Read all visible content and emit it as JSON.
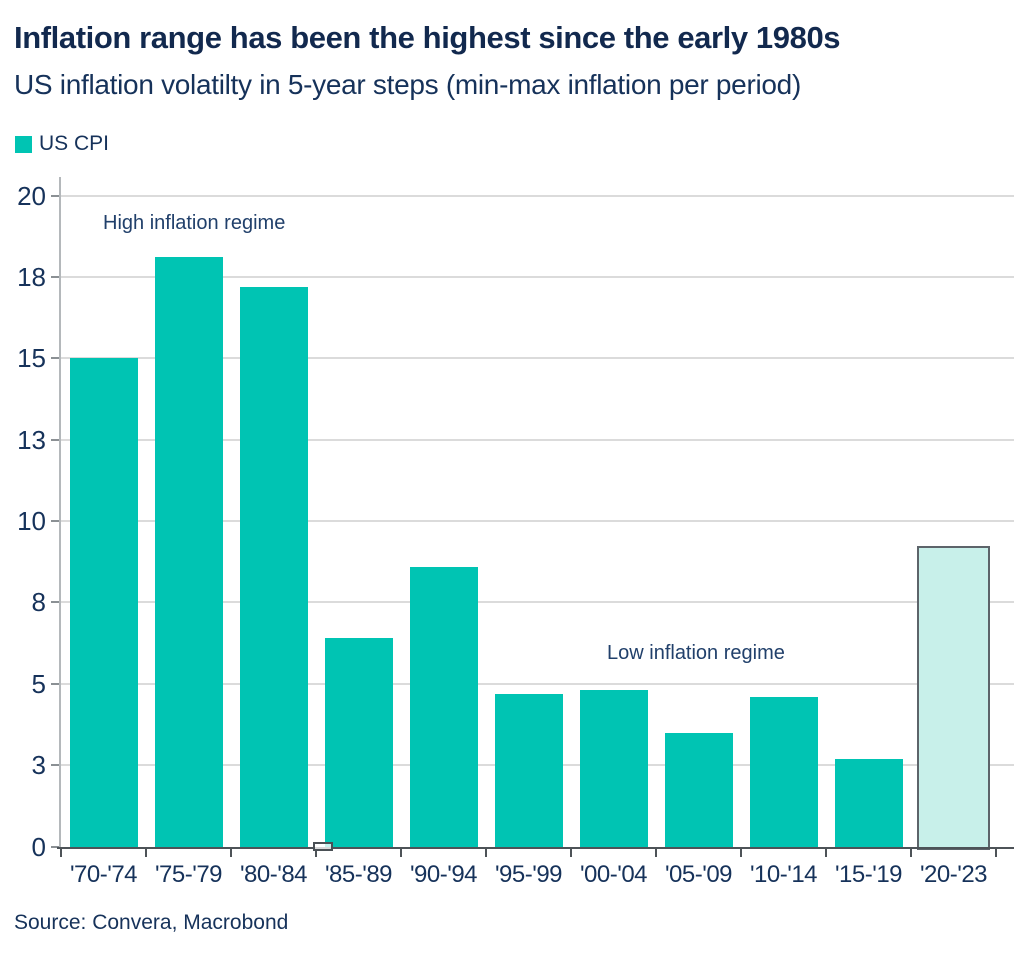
{
  "header": {
    "title": "Inflation range has been the highest since the early 1980s",
    "subtitle": "US inflation volatilty in 5-year steps (min-max inflation per period)"
  },
  "legend": {
    "label": "US CPI"
  },
  "source": "Source: Convera, Macrobond",
  "chart_data": {
    "type": "bar",
    "title": "Inflation range has been the highest since the early 1980s",
    "subtitle": "US inflation volatilty in 5-year steps (min-max inflation per period)",
    "categories": [
      "'70-'74",
      "'75-'79",
      "'80-'84",
      "'85-'89",
      "'90-'94",
      "'95-'99",
      "'00-'04",
      "'05-'09",
      "'10-'14",
      "'15-'19",
      "'20-'23"
    ],
    "series": [
      {
        "name": "US CPI",
        "values": [
          15.0,
          18.1,
          17.2,
          6.4,
          8.6,
          4.7,
          4.8,
          3.5,
          4.6,
          2.7,
          9.2
        ]
      }
    ],
    "highlight": {
      "index": 10,
      "category": "'20-'23",
      "style": "light-fill-outlined"
    },
    "baseline_marker": {
      "category_index": 3,
      "value": 0.2,
      "style": "small-outlined-box-at-axis"
    },
    "ylim": [
      0,
      20
    ],
    "y_ticks": [
      {
        "value": 0,
        "label": "0"
      },
      {
        "value": 2.5,
        "label": "3"
      },
      {
        "value": 5,
        "label": "5"
      },
      {
        "value": 7.5,
        "label": "8"
      },
      {
        "value": 10,
        "label": "10"
      },
      {
        "value": 12.5,
        "label": "13"
      },
      {
        "value": 15,
        "label": "15"
      },
      {
        "value": 17.5,
        "label": "18"
      },
      {
        "value": 20,
        "label": "20"
      }
    ],
    "grid": "horizontal",
    "legend_position": "top-left",
    "annotations": [
      {
        "text": "High inflation regime",
        "x": 103,
        "y": 211
      },
      {
        "text": "Low inflation regime",
        "x": 607,
        "y": 641
      }
    ],
    "colors": {
      "bar": "#00c4b3",
      "highlight_fill": "#c8f0ea",
      "highlight_border": "#5d646a",
      "text_navy": "#16325a"
    }
  }
}
